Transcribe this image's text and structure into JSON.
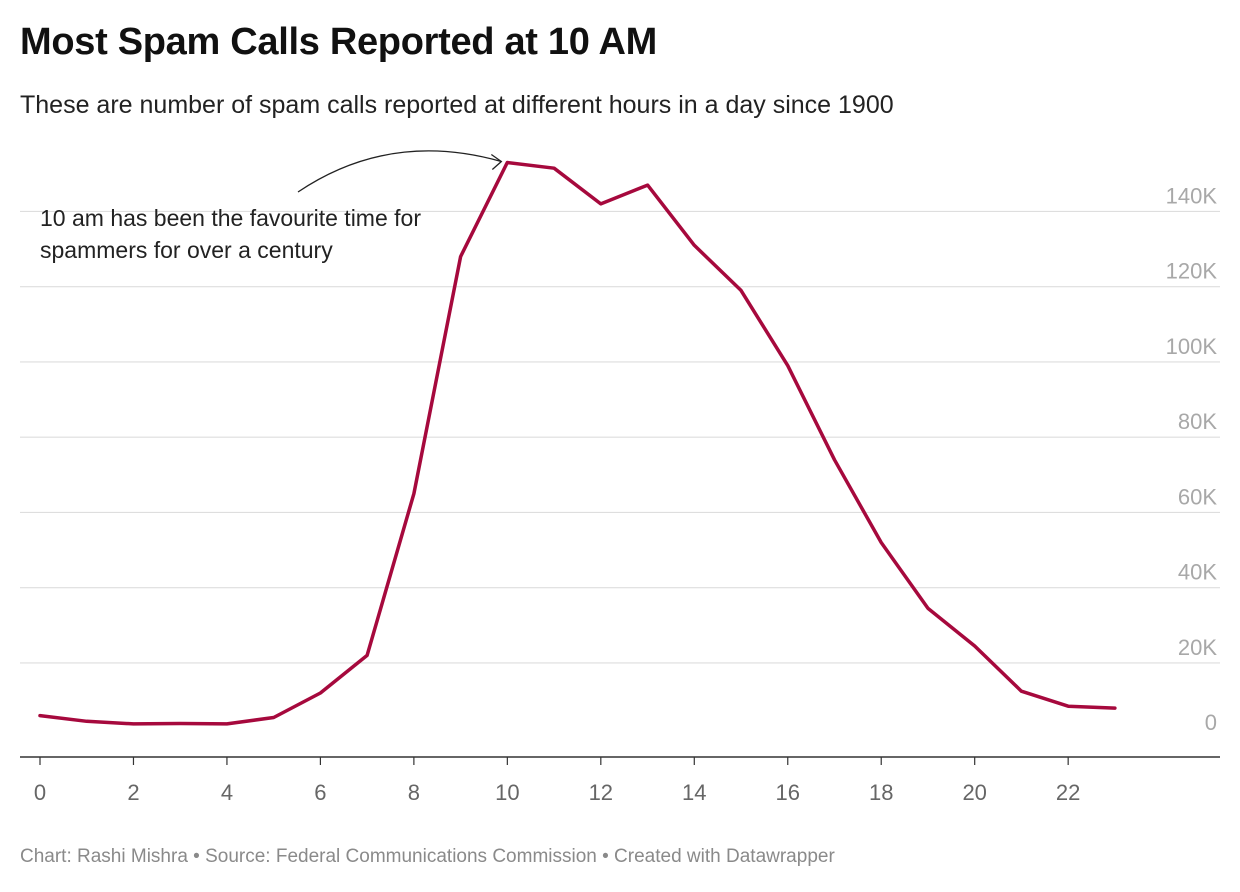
{
  "title": "Most Spam Calls Reported at 10 AM",
  "subtitle": "These are number of spam calls reported at different hours in a day since 1900",
  "footer": "Chart: Rashi Mishra • Source: Federal Communications Commission • Created with Datawrapper",
  "chart_data": {
    "type": "line",
    "x": [
      0,
      1,
      2,
      3,
      4,
      5,
      6,
      7,
      8,
      9,
      10,
      11,
      12,
      13,
      14,
      15,
      16,
      17,
      18,
      19,
      20,
      21,
      22,
      23
    ],
    "series": [
      {
        "values": [
          6000,
          4500,
          3800,
          3900,
          3800,
          5500,
          12000,
          22000,
          65000,
          128000,
          153000,
          151500,
          142000,
          147000,
          131000,
          119000,
          99000,
          74000,
          52000,
          34500,
          24500,
          12500,
          8500,
          8000
        ]
      }
    ],
    "xticks": [
      0,
      2,
      4,
      6,
      8,
      10,
      12,
      14,
      16,
      18,
      20,
      22
    ],
    "yticks": [
      0,
      20000,
      40000,
      60000,
      80000,
      100000,
      120000,
      140000
    ],
    "ytick_labels": [
      "0",
      "20K",
      "40K",
      "60K",
      "80K",
      "100K",
      "120K",
      "140K"
    ],
    "xlim": [
      0,
      24.5
    ],
    "ylim": [
      -5000,
      155000
    ],
    "grid": true,
    "line_color": "#a6093d",
    "annotation": {
      "lines": [
        "10 am has been the favourite time for",
        "spammers for over a century"
      ],
      "target_x": 10,
      "target_y": 153000
    }
  }
}
